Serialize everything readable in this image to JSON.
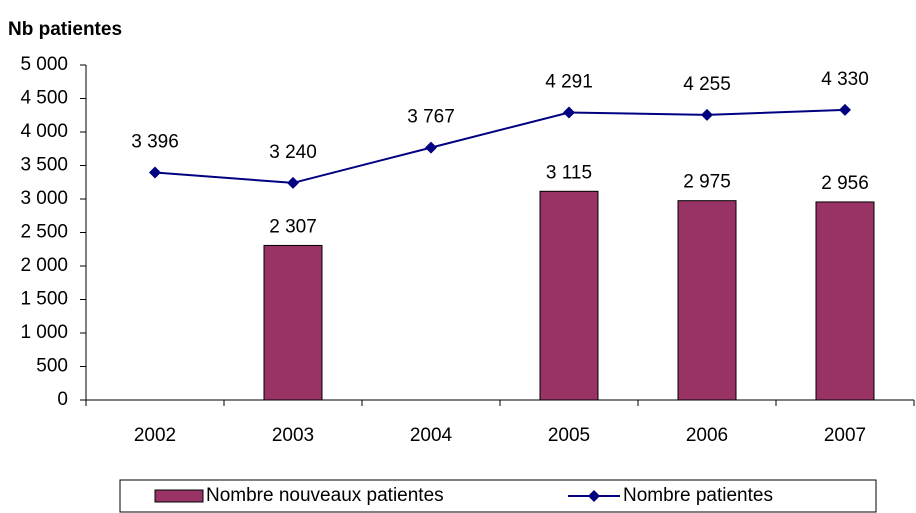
{
  "chart_data": {
    "type": "bar",
    "title": "Nb patientes",
    "categories": [
      "2002",
      "2003",
      "2004",
      "2005",
      "2006",
      "2007"
    ],
    "series": [
      {
        "name": "Nombre nouveaux patientes",
        "type": "bar",
        "color": "#993366",
        "values": [
          null,
          2307,
          null,
          3115,
          2975,
          2956
        ],
        "value_labels": [
          null,
          "2 307",
          null,
          "3 115",
          "2 975",
          "2 956"
        ]
      },
      {
        "name": "Nombre patientes",
        "type": "line",
        "color": "#000080",
        "values": [
          3396,
          3240,
          3767,
          4291,
          4255,
          4330
        ],
        "value_labels": [
          "3 396",
          "3 240",
          "3 767",
          "4 291",
          "4 255",
          "4 330"
        ]
      }
    ],
    "ylim": [
      0,
      5000
    ],
    "yticks": [
      0,
      500,
      {
        "value": 1000,
        "label": "1 000"
      },
      {
        "value": 1500,
        "label": "1 500"
      },
      {
        "value": 2000,
        "label": "2 000"
      },
      {
        "value": 2500,
        "label": "2 500"
      },
      {
        "value": 3000,
        "label": "3 000"
      },
      {
        "value": 3500,
        "label": "3 500"
      },
      {
        "value": 4000,
        "label": "4 000"
      },
      {
        "value": 4500,
        "label": "4 500"
      },
      {
        "value": 5000,
        "label": "5 000"
      }
    ],
    "grid": false,
    "legend": "bottom"
  }
}
